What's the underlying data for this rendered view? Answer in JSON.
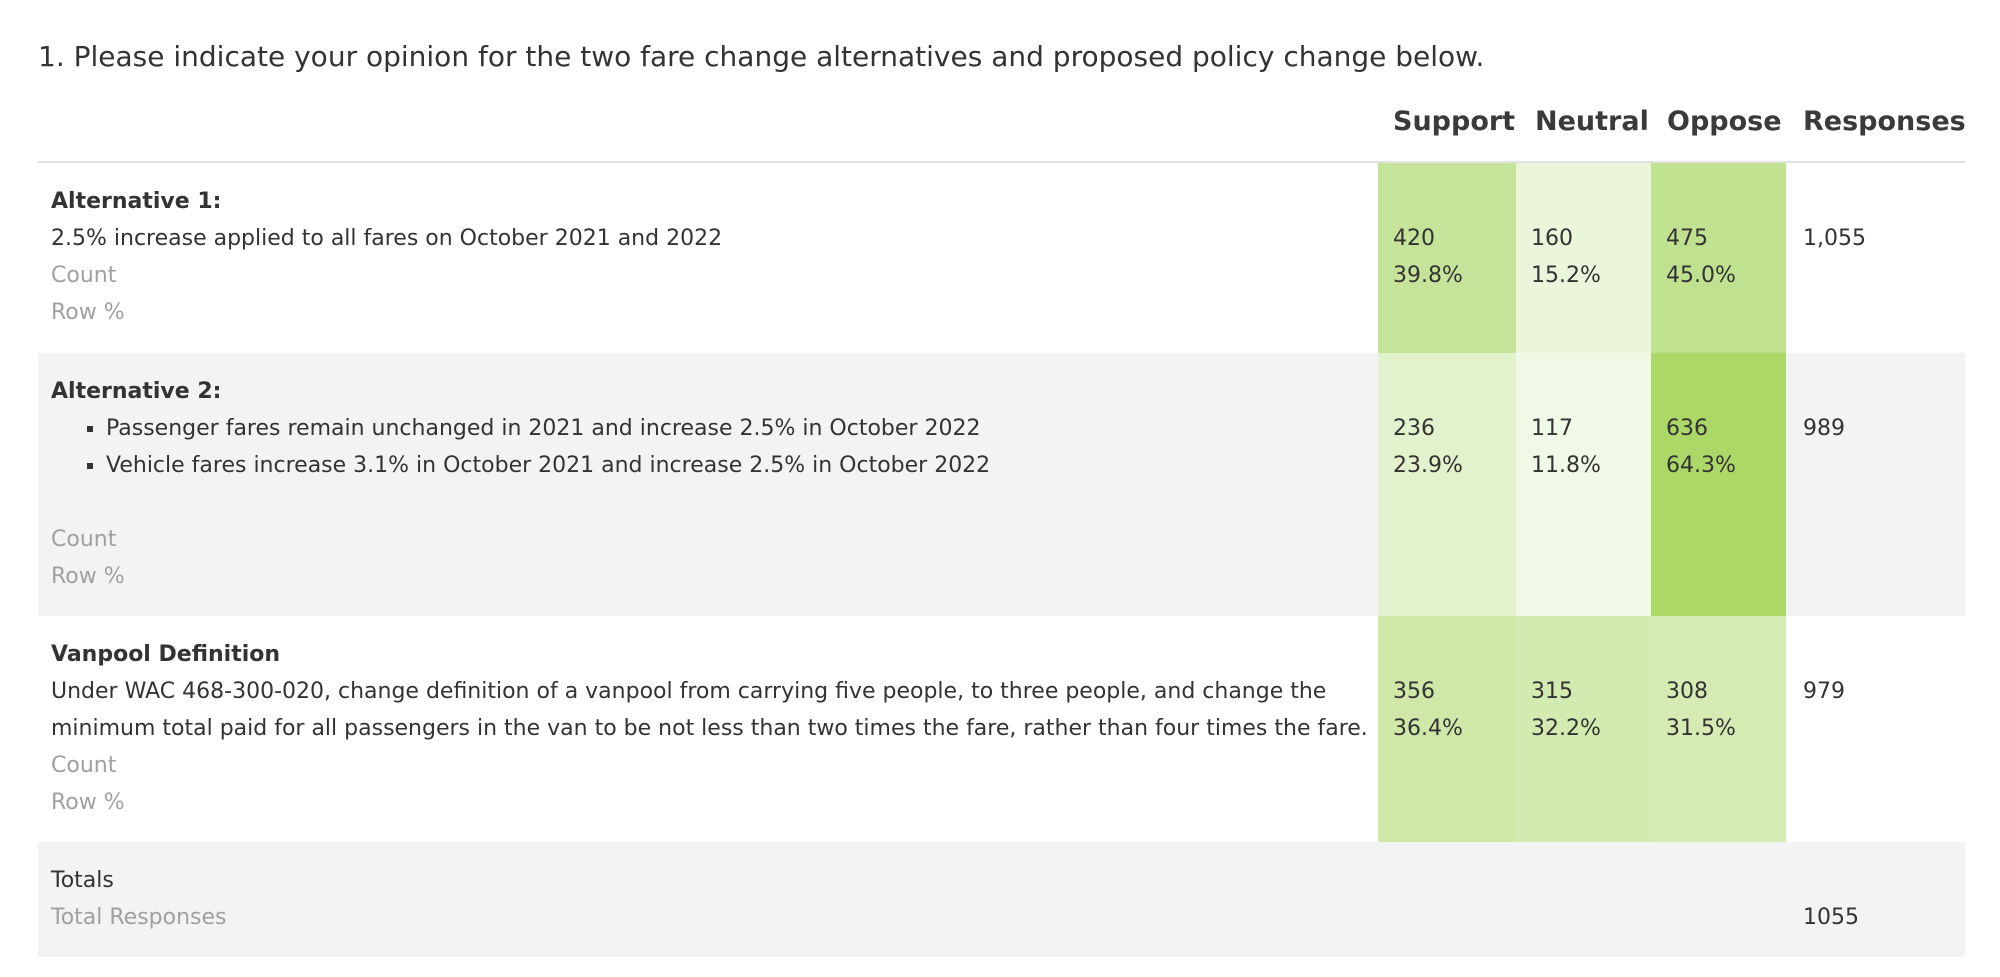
{
  "question": "1. Please indicate your opinion for the two fare change alternatives and proposed policy change below.",
  "columns": [
    "Support",
    "Neutral",
    "Oppose",
    "Responses"
  ],
  "rows": [
    {
      "label": "Alternative 1:",
      "description": [
        "2.5% increase applied to all fares on October 2021 and 2022"
      ],
      "count_label": "Count",
      "percent_label": "Row %",
      "counts": [
        420,
        160,
        475
      ],
      "percents": [
        "39.8%",
        "15.2%",
        "45.0%"
      ],
      "responses": "1,055"
    },
    {
      "label": "Alternative 2:",
      "bullets": [
        "Passenger fares remain unchanged in 2021 and increase 2.5% in October 2022",
        "Vehicle fares increase 3.1% in October 2021 and increase 2.5% in October 2022"
      ],
      "count_label": "Count",
      "percent_label": "Row %",
      "counts": [
        236,
        117,
        636
      ],
      "percents": [
        "23.9%",
        "11.8%",
        "64.3%"
      ],
      "responses": 989
    },
    {
      "label": "Vanpool Definition",
      "description": [
        "Under WAC 468-300-020, change definition of a vanpool from carrying five people, to three people, and change the",
        "minimum total paid for all passengers in the van to be not less than two times the fare, rather than four times the fare."
      ],
      "count_label": "Count",
      "percent_label": "Row %",
      "counts": [
        356,
        315,
        308
      ],
      "percents": [
        "36.4%",
        "32.2%",
        "31.5%"
      ],
      "responses": 979
    }
  ],
  "totals": {
    "label": "Totals",
    "sublabel": "Total Responses",
    "value": 1055
  }
}
